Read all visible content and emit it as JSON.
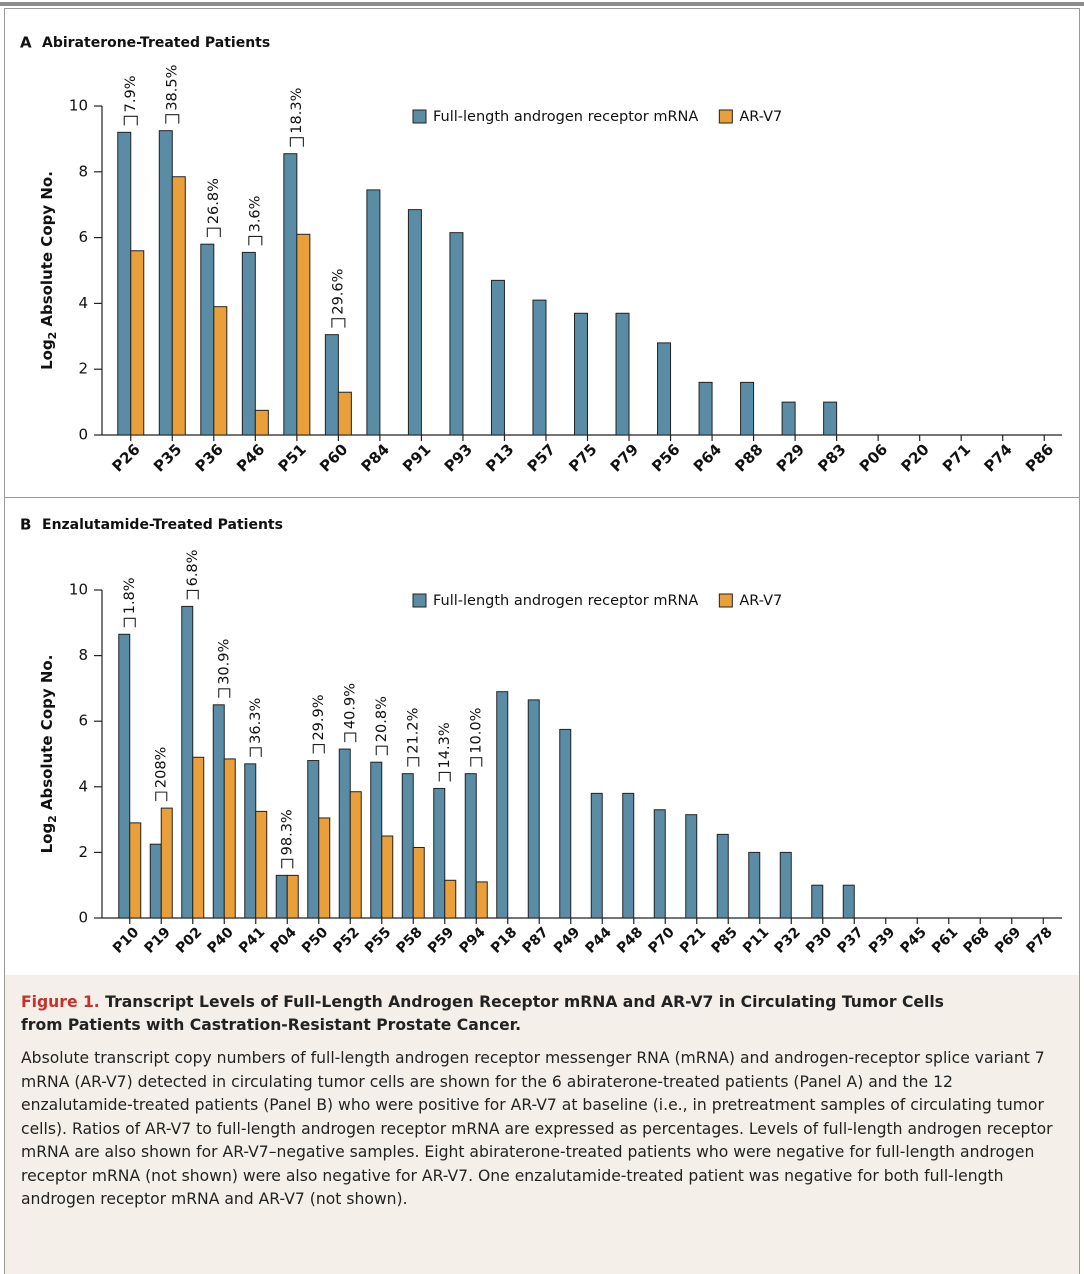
{
  "chart_data": [
    {
      "type": "bar",
      "panel": "A",
      "title": "Abiraterone-Treated Patients",
      "ylabel": {
        "base": "Log",
        "sub": "2",
        "rest": "Absolute Copy No."
      },
      "categories": [
        "P26",
        "P35",
        "P36",
        "P46",
        "P51",
        "P60",
        "P84",
        "P91",
        "P93",
        "P13",
        "P57",
        "P75",
        "P79",
        "P56",
        "P64",
        "P88",
        "P29",
        "P83",
        "P06",
        "P20",
        "P71",
        "P74",
        "P86"
      ],
      "series": [
        {
          "name": "Full-length androgen receptor mRNA",
          "color": "#5b8ca6",
          "values": [
            9.2,
            9.25,
            5.8,
            5.55,
            8.55,
            3.05,
            7.45,
            6.85,
            6.15,
            4.7,
            4.1,
            3.7,
            3.7,
            2.8,
            1.6,
            1.6,
            1.0,
            1.0,
            0,
            0,
            0,
            0,
            0
          ]
        },
        {
          "name": "AR-V7",
          "color": "#e9a03b",
          "values": [
            5.6,
            7.85,
            3.9,
            0.75,
            6.1,
            1.3,
            null,
            null,
            null,
            null,
            null,
            null,
            null,
            null,
            null,
            null,
            null,
            null,
            null,
            null,
            null,
            null,
            null
          ]
        }
      ],
      "ratio_labels": [
        "7.9%",
        "38.5%",
        "26.8%",
        "3.6%",
        "18.3%",
        "29.6%",
        null,
        null,
        null,
        null,
        null,
        null,
        null,
        null,
        null,
        null,
        null,
        null,
        null,
        null,
        null,
        null,
        null
      ],
      "ylim": [
        0,
        10
      ],
      "yticks": [
        0,
        2,
        4,
        6,
        8,
        10
      ],
      "legend": "top"
    },
    {
      "type": "bar",
      "panel": "B",
      "title": "Enzalutamide-Treated Patients",
      "ylabel": {
        "base": "Log",
        "sub": "2",
        "rest": "Absolute Copy No."
      },
      "categories": [
        "P10",
        "P19",
        "P02",
        "P40",
        "P41",
        "P04",
        "P50",
        "P52",
        "P55",
        "P58",
        "P59",
        "P94",
        "P18",
        "P87",
        "P49",
        "P44",
        "P48",
        "P70",
        "P21",
        "P85",
        "P11",
        "P32",
        "P30",
        "P37",
        "P39",
        "P45",
        "P61",
        "P68",
        "P69",
        "P78"
      ],
      "series": [
        {
          "name": "Full-length androgen receptor mRNA",
          "color": "#5b8ca6",
          "values": [
            8.65,
            2.25,
            9.5,
            6.5,
            4.7,
            1.3,
            4.8,
            5.15,
            4.75,
            4.4,
            3.95,
            4.4,
            6.9,
            6.65,
            5.75,
            3.8,
            3.8,
            3.3,
            3.15,
            2.55,
            2.0,
            2.0,
            1.0,
            1.0,
            0,
            0,
            0,
            0,
            0,
            0
          ]
        },
        {
          "name": "AR-V7",
          "color": "#e9a03b",
          "values": [
            2.9,
            3.35,
            4.9,
            4.85,
            3.25,
            1.3,
            3.05,
            3.85,
            2.5,
            2.15,
            1.15,
            1.1,
            null,
            null,
            null,
            null,
            null,
            null,
            null,
            null,
            null,
            null,
            null,
            null,
            null,
            null,
            null,
            null,
            null,
            null
          ]
        }
      ],
      "ratio_labels": [
        "1.8%",
        "208%",
        "6.8%",
        "30.9%",
        "36.3%",
        "98.3%",
        "29.9%",
        "40.9%",
        "20.8%",
        "21.2%",
        "14.3%",
        "10.0%",
        null,
        null,
        null,
        null,
        null,
        null,
        null,
        null,
        null,
        null,
        null,
        null,
        null,
        null,
        null,
        null,
        null,
        null
      ],
      "ylim": [
        0,
        10
      ],
      "yticks": [
        0,
        2,
        4,
        6,
        8,
        10
      ],
      "legend": "top"
    }
  ],
  "caption": {
    "label": "Figure 1.",
    "title": "Transcript Levels of Full-Length Androgen Receptor mRNA and AR-V7 in Circulating Tumor Cells from Patients with Castration-Resistant Prostate Cancer.",
    "body": "Absolute transcript copy numbers of full-length androgen receptor messenger RNA (mRNA) and androgen-receptor splice variant 7 mRNA (AR-V7) detected in circulating tumor cells are shown for the 6 abiraterone-treated patients (Panel A) and the 12 enzalutamide-treated patients (Panel B) who were positive for AR-V7 at baseline (i.e., in pretreatment samples of circulating tumor cells). Ratios of AR-V7 to full-length androgen receptor mRNA are expressed as percentages. Levels of full-length androgen receptor mRNA are also shown for AR-V7–negative samples. Eight abiraterone-treated patients who were negative for full-length androgen receptor mRNA (not shown) were also negative for AR-V7. One enzalutamide-treated patient was negative for both full-length androgen receptor mRNA and AR-V7 (not shown)."
  }
}
